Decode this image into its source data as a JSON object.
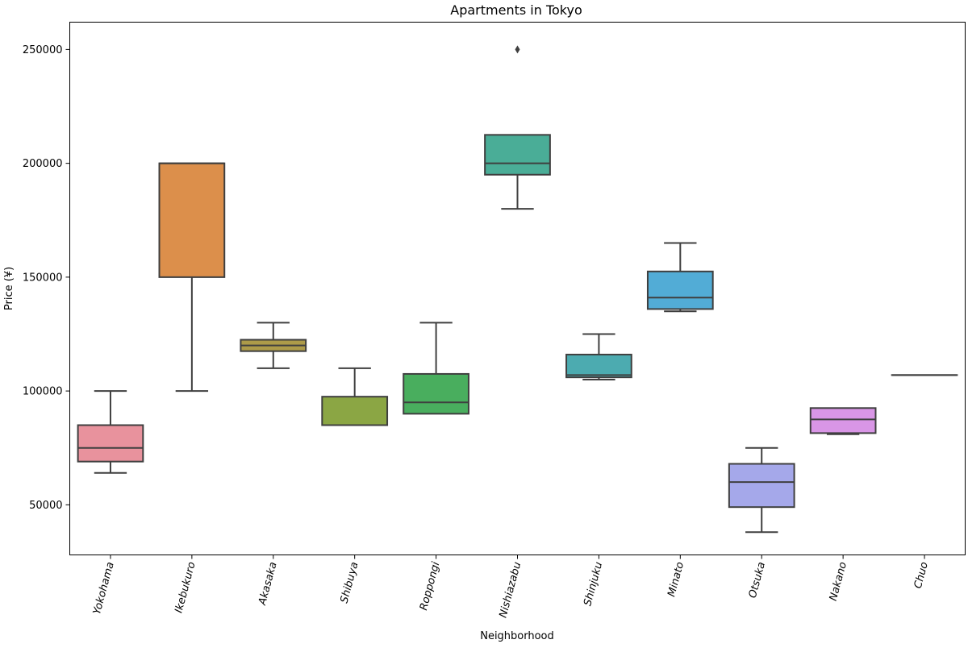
{
  "chart_data": {
    "type": "box",
    "title": "Apartments in Tokyo",
    "xlabel": "Neighborhood",
    "ylabel": "Price (¥)",
    "ylim": [
      28000,
      262000
    ],
    "yticks": [
      "50000",
      "100000",
      "150000",
      "200000",
      "250000"
    ],
    "grid": false,
    "categories": [
      {
        "name": "Yokohama",
        "whislo": 64000,
        "q1": 69000,
        "med": 75000,
        "q3": 85000,
        "whishi": 100000,
        "fliers": [],
        "color": "#e8929d"
      },
      {
        "name": "Ikebukuro",
        "whislo": 100000,
        "q1": 150000,
        "med": 200000,
        "q3": 200000,
        "whishi": 200000,
        "fliers": [],
        "color": "#dc8f4b"
      },
      {
        "name": "Akasaka",
        "whislo": 110000,
        "q1": 117500,
        "med": 120000,
        "q3": 122500,
        "whishi": 130000,
        "fliers": [],
        "color": "#ad9b49"
      },
      {
        "name": "Shibuya",
        "whislo": 85000,
        "q1": 85000,
        "med": 85000,
        "q3": 97500,
        "whishi": 110000,
        "fliers": [],
        "color": "#8ba644"
      },
      {
        "name": "Roppongi",
        "whislo": 90000,
        "q1": 90000,
        "med": 95000,
        "q3": 107500,
        "whishi": 130000,
        "fliers": [],
        "color": "#49ae5e"
      },
      {
        "name": "Nishiazabu",
        "whislo": 180000,
        "q1": 195000,
        "med": 200000,
        "q3": 212500,
        "whishi": 212500,
        "fliers": [
          250000
        ],
        "color": "#4aad97"
      },
      {
        "name": "Shinjuku",
        "whislo": 105000,
        "q1": 106000,
        "med": 107000,
        "q3": 116000,
        "whishi": 125000,
        "fliers": [],
        "color": "#4cabb0"
      },
      {
        "name": "Minato",
        "whislo": 135000,
        "q1": 136000,
        "med": 141000,
        "q3": 152500,
        "whishi": 165000,
        "fliers": [],
        "color": "#52acd6"
      },
      {
        "name": "Otsuka",
        "whislo": 38000,
        "q1": 49000,
        "med": 60000,
        "q3": 68000,
        "whishi": 75000,
        "fliers": [],
        "color": "#a5a8ea"
      },
      {
        "name": "Nakano",
        "whislo": 81000,
        "q1": 81500,
        "med": 87500,
        "q3": 92500,
        "whishi": 92500,
        "fliers": [],
        "color": "#d996e6"
      },
      {
        "name": "Chuo",
        "whislo": 107000,
        "q1": 107000,
        "med": 107000,
        "q3": 107000,
        "whishi": 107000,
        "fliers": [],
        "color": "#e58fc6"
      }
    ]
  }
}
